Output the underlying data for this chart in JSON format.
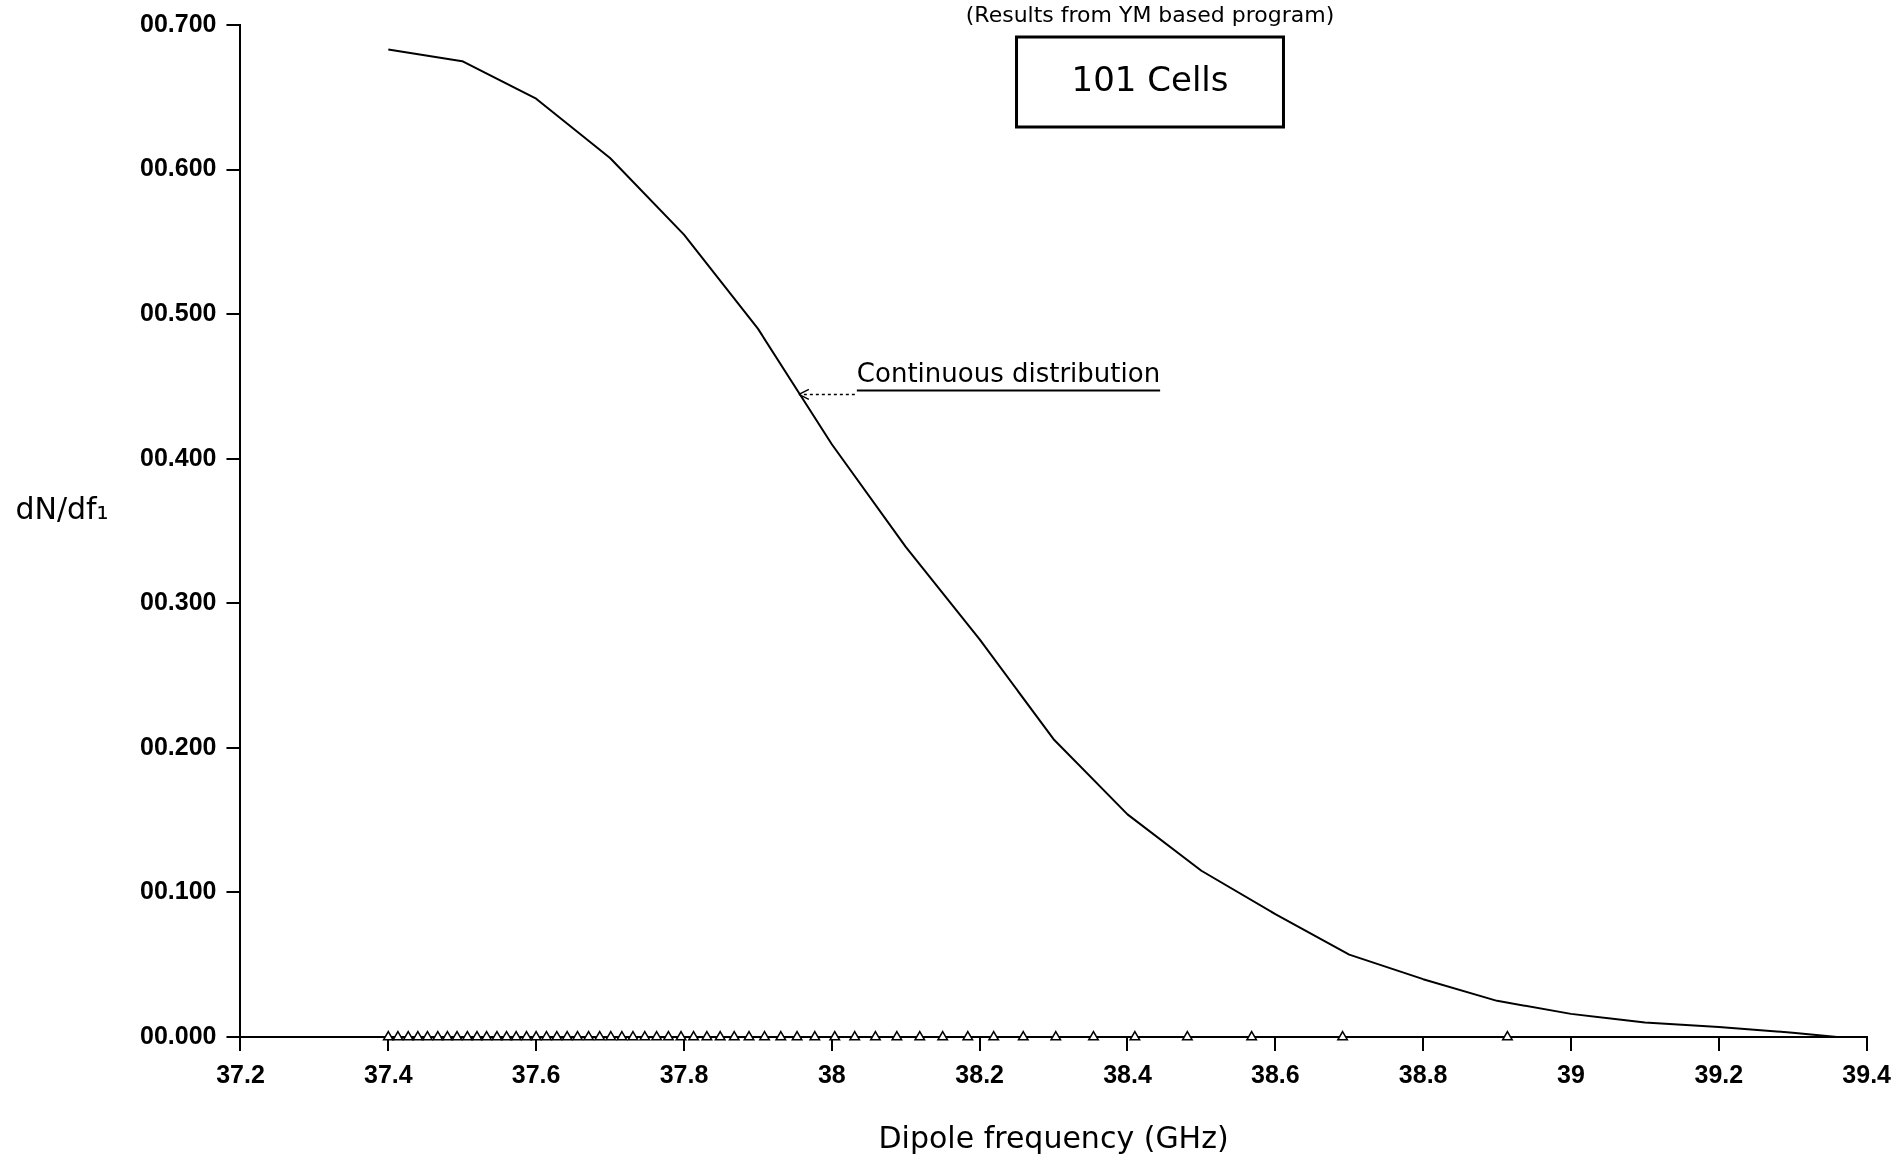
{
  "chart_data": {
    "type": "line",
    "xlabel": "Dipole frequency (GHz)",
    "ylabel": "dN/df₁",
    "annotations": [
      "(Results from YM based program)",
      "101 Cells",
      {
        "text": "Continuous distribution",
        "x": 37.95,
        "y": 0.45
      }
    ],
    "xlim": [
      37.2,
      39.4
    ],
    "xticks": [
      37.2,
      37.4,
      37.6,
      37.8,
      38,
      38.2,
      38.4,
      38.6,
      38.8,
      39,
      39.2,
      39.4
    ],
    "ylim": [
      0,
      0.7
    ],
    "yticks": [
      {
        "value": 0,
        "label": "00.000"
      },
      {
        "value": 0.1,
        "label": "00.100"
      },
      {
        "value": 0.2,
        "label": "00.200"
      },
      {
        "value": 0.3,
        "label": "00.300"
      },
      {
        "value": 0.4,
        "label": "00.400"
      },
      {
        "value": 0.5,
        "label": "00.500"
      },
      {
        "value": 0.6,
        "label": "00.600"
      },
      {
        "value": 0.7,
        "label": "00.700"
      }
    ],
    "grid": false,
    "legend": false,
    "series": [
      {
        "type": "line",
        "color": "#000000",
        "marker": "none",
        "line_style": "solid",
        "x": [
          37.4,
          37.5,
          37.6,
          37.7,
          37.8,
          37.9,
          38.0,
          38.1,
          38.2,
          38.3,
          38.4,
          38.5,
          38.6,
          38.7,
          38.8,
          38.9,
          39.0,
          39.1,
          39.2,
          39.3,
          39.36
        ],
        "values": [
          0.683,
          0.675,
          0.649,
          0.608,
          0.555,
          0.49,
          0.41,
          0.339,
          0.275,
          0.206,
          0.154,
          0.115,
          0.085,
          0.057,
          0.04,
          0.025,
          0.016,
          0.01,
          0.007,
          0.003,
          0.0
        ]
      },
      {
        "type": "scatter",
        "color": "#000000",
        "marker": "triangle",
        "x": [
          37.4,
          37.413,
          37.427,
          37.44,
          37.453,
          37.467,
          37.48,
          37.493,
          37.507,
          37.52,
          37.533,
          37.547,
          37.56,
          37.573,
          37.587,
          37.6,
          37.614,
          37.628,
          37.642,
          37.656,
          37.671,
          37.686,
          37.701,
          37.716,
          37.731,
          37.747,
          37.763,
          37.779,
          37.796,
          37.813,
          37.831,
          37.849,
          37.868,
          37.888,
          37.909,
          37.931,
          37.953,
          37.977,
          38.004,
          38.031,
          38.059,
          38.088,
          38.119,
          38.15,
          38.184,
          38.219,
          38.259,
          38.303,
          38.354,
          38.41,
          38.481,
          38.568,
          38.691,
          38.914
        ],
        "values": [
          0,
          0,
          0,
          0,
          0,
          0,
          0,
          0,
          0,
          0,
          0,
          0,
          0,
          0,
          0,
          0,
          0,
          0,
          0,
          0,
          0,
          0,
          0,
          0,
          0,
          0,
          0,
          0,
          0,
          0,
          0,
          0,
          0,
          0,
          0,
          0,
          0,
          0,
          0,
          0,
          0,
          0,
          0,
          0,
          0,
          0,
          0,
          0,
          0,
          0,
          0,
          0,
          0,
          0
        ]
      }
    ]
  }
}
